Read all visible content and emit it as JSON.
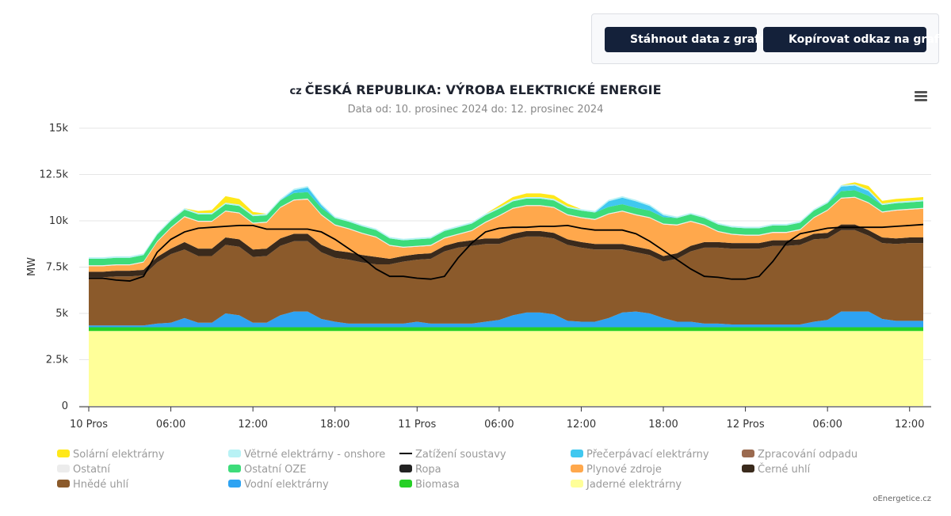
{
  "toolbar": {
    "download_label": "Stáhnout data z grafu",
    "copy_label": "Kopírovat odkaz na graf"
  },
  "title_prefix": "cz",
  "credit": "oEnergetice.cz",
  "chart_data": {
    "type": "area",
    "stacked": true,
    "title": "ČESKÁ REPUBLIKA: VÝROBA ELEKTRICKÉ ENERGIE",
    "subtitle": "Data od: 10. prosinec 2024 do: 12. prosinec 2024",
    "ylabel": "MW",
    "ylim": [
      0,
      15000
    ],
    "yticks": [
      0,
      2500,
      5000,
      7500,
      10000,
      12500,
      15000
    ],
    "ytick_labels": [
      "0",
      "2.5k",
      "5k",
      "7.5k",
      "10k",
      "12.5k",
      "15k"
    ],
    "x": [
      0,
      1,
      2,
      3,
      4,
      5,
      6,
      7,
      8,
      9,
      10,
      11,
      12,
      13,
      14,
      15,
      16,
      17,
      18,
      19,
      20,
      21,
      22,
      23,
      24,
      25,
      26,
      27,
      28,
      29,
      30,
      31,
      32,
      33,
      34,
      35,
      36,
      37,
      38,
      39,
      40,
      41,
      42,
      43,
      44,
      45,
      46,
      47,
      48,
      49,
      50,
      51,
      52,
      53,
      54,
      55,
      56,
      57,
      58,
      59,
      60,
      61
    ],
    "xlim": [
      0,
      61
    ],
    "xticks": [
      0,
      6,
      12,
      18,
      24,
      30,
      36,
      42,
      48,
      54,
      60
    ],
    "xtick_labels": [
      "10 Pros",
      "06:00",
      "12:00",
      "18:00",
      "11 Pros",
      "06:00",
      "12:00",
      "18:00",
      "12 Pros",
      "06:00",
      "12:00"
    ],
    "x_unit": "hodiny od 10. prosince 2024 00:00",
    "series": [
      {
        "name": "Jaderné elektrárny",
        "color": "#ffff99",
        "values": [
          4050,
          4050,
          4050,
          4050,
          4050,
          4050,
          4050,
          4050,
          4050,
          4050,
          4050,
          4050,
          4050,
          4050,
          4050,
          4050,
          4050,
          4050,
          4050,
          4050,
          4050,
          4050,
          4050,
          4050,
          4050,
          4050,
          4050,
          4050,
          4050,
          4050,
          4050,
          4050,
          4050,
          4050,
          4050,
          4050,
          4050,
          4050,
          4050,
          4050,
          4050,
          4050,
          4050,
          4050,
          4050,
          4050,
          4050,
          4050,
          4050,
          4050,
          4050,
          4050,
          4050,
          4050,
          4050,
          4050,
          4050,
          4050,
          4050,
          4050,
          4050,
          4050
        ]
      },
      {
        "name": "Biomasa",
        "color": "#26d026",
        "values": [
          200,
          200,
          200,
          200,
          200,
          200,
          200,
          200,
          200,
          200,
          200,
          200,
          200,
          200,
          200,
          200,
          200,
          200,
          200,
          200,
          200,
          200,
          200,
          200,
          200,
          200,
          200,
          200,
          200,
          200,
          200,
          200,
          200,
          200,
          200,
          200,
          200,
          200,
          200,
          200,
          200,
          200,
          200,
          200,
          200,
          200,
          200,
          200,
          200,
          200,
          200,
          200,
          200,
          200,
          200,
          200,
          200,
          200,
          200,
          200,
          200,
          200
        ]
      },
      {
        "name": "Vodní elektrárny",
        "color": "#2ea3f2",
        "values": [
          100,
          100,
          100,
          100,
          100,
          200,
          250,
          500,
          250,
          250,
          750,
          650,
          250,
          250,
          650,
          850,
          850,
          450,
          300,
          200,
          200,
          200,
          200,
          200,
          300,
          200,
          200,
          200,
          200,
          300,
          400,
          650,
          800,
          800,
          700,
          350,
          300,
          300,
          500,
          800,
          850,
          750,
          500,
          300,
          300,
          200,
          200,
          150,
          150,
          150,
          150,
          150,
          150,
          300,
          400,
          850,
          850,
          850,
          450,
          350,
          350,
          350
        ]
      },
      {
        "name": "Hnědé uhlí",
        "color": "#8b5a2b",
        "values": [
          2600,
          2600,
          2650,
          2650,
          2700,
          3300,
          3700,
          3700,
          3600,
          3600,
          3700,
          3700,
          3550,
          3600,
          3750,
          3800,
          3800,
          3600,
          3450,
          3450,
          3300,
          3200,
          3200,
          3350,
          3350,
          3500,
          3900,
          4100,
          4200,
          4200,
          4100,
          4100,
          4100,
          4100,
          4100,
          4100,
          4000,
          3900,
          3700,
          3400,
          3200,
          3150,
          3050,
          3400,
          3800,
          4100,
          4100,
          4100,
          4100,
          4100,
          4250,
          4250,
          4300,
          4450,
          4400,
          4400,
          4400,
          4100,
          4100,
          4150,
          4200,
          4200
        ]
      },
      {
        "name": "Černé uhlí",
        "color": "#3a2a1c",
        "values": [
          300,
          300,
          300,
          300,
          300,
          300,
          300,
          400,
          400,
          400,
          400,
          400,
          400,
          400,
          400,
          400,
          400,
          400,
          400,
          400,
          400,
          400,
          300,
          300,
          300,
          300,
          300,
          300,
          300,
          300,
          300,
          300,
          300,
          300,
          300,
          300,
          300,
          300,
          300,
          300,
          300,
          300,
          300,
          300,
          300,
          300,
          300,
          300,
          300,
          300,
          300,
          300,
          300,
          300,
          300,
          300,
          300,
          300,
          300,
          300,
          300,
          300
        ]
      },
      {
        "name": "Ropa",
        "color": "#222222",
        "values": [
          0,
          0,
          0,
          0,
          0,
          0,
          0,
          0,
          0,
          0,
          0,
          0,
          0,
          0,
          0,
          0,
          0,
          0,
          0,
          0,
          0,
          0,
          0,
          0,
          0,
          0,
          0,
          0,
          0,
          0,
          0,
          0,
          0,
          0,
          0,
          0,
          0,
          0,
          0,
          0,
          0,
          0,
          0,
          0,
          0,
          0,
          0,
          0,
          0,
          0,
          0,
          0,
          0,
          0,
          0,
          0,
          0,
          0,
          0,
          0,
          0,
          0
        ]
      },
      {
        "name": "Plynové zdroje",
        "color": "#ffa84c",
        "values": [
          300,
          300,
          300,
          300,
          400,
          800,
          1100,
          1350,
          1450,
          1450,
          1400,
          1400,
          1400,
          1400,
          1650,
          1800,
          1850,
          1600,
          1350,
          1250,
          1150,
          1050,
          700,
          450,
          400,
          400,
          400,
          400,
          500,
          850,
          1200,
          1350,
          1350,
          1350,
          1350,
          1300,
          1300,
          1300,
          1600,
          1750,
          1700,
          1700,
          1700,
          1500,
          1300,
          900,
          550,
          450,
          400,
          400,
          400,
          400,
          500,
          850,
          1200,
          1400,
          1450,
          1450,
          1350,
          1500,
          1500,
          1550
        ]
      },
      {
        "name": "Ostatní",
        "color": "#ececec",
        "values": [
          50,
          50,
          50,
          50,
          50,
          50,
          50,
          50,
          50,
          50,
          50,
          50,
          50,
          50,
          50,
          50,
          50,
          50,
          50,
          50,
          50,
          50,
          50,
          50,
          50,
          50,
          50,
          50,
          50,
          50,
          50,
          50,
          50,
          50,
          50,
          50,
          50,
          50,
          50,
          50,
          50,
          50,
          50,
          50,
          50,
          50,
          50,
          50,
          50,
          50,
          50,
          50,
          50,
          50,
          50,
          50,
          50,
          50,
          50,
          50,
          50,
          50
        ]
      },
      {
        "name": "Ostatní OZE",
        "color": "#3ddc7a",
        "values": [
          350,
          350,
          350,
          350,
          350,
          350,
          350,
          350,
          350,
          350,
          350,
          350,
          350,
          350,
          350,
          350,
          350,
          350,
          350,
          350,
          350,
          350,
          350,
          350,
          350,
          350,
          350,
          350,
          350,
          350,
          350,
          350,
          350,
          350,
          350,
          350,
          350,
          350,
          350,
          350,
          350,
          350,
          350,
          350,
          350,
          350,
          350,
          350,
          350,
          350,
          350,
          350,
          350,
          350,
          350,
          350,
          350,
          350,
          350,
          350,
          350,
          350
        ]
      },
      {
        "name": "Přečerpávací elektrárny",
        "color": "#40c8f0",
        "values": [
          0,
          0,
          0,
          0,
          0,
          0,
          0,
          0,
          0,
          0,
          0,
          0,
          0,
          0,
          0,
          150,
          250,
          150,
          0,
          0,
          0,
          0,
          0,
          0,
          0,
          0,
          0,
          0,
          0,
          0,
          0,
          0,
          0,
          0,
          0,
          0,
          0,
          0,
          300,
          350,
          350,
          250,
          100,
          0,
          0,
          0,
          0,
          0,
          0,
          0,
          0,
          0,
          0,
          0,
          0,
          250,
          250,
          250,
          0,
          0,
          0,
          0
        ]
      },
      {
        "name": "Větrné elektrárny - onshore",
        "color": "#b8f2f5",
        "values": [
          80,
          80,
          80,
          80,
          80,
          80,
          80,
          80,
          80,
          80,
          80,
          80,
          80,
          80,
          80,
          80,
          80,
          80,
          80,
          80,
          80,
          80,
          80,
          80,
          80,
          80,
          80,
          80,
          80,
          80,
          80,
          80,
          80,
          80,
          80,
          80,
          80,
          80,
          80,
          80,
          80,
          80,
          80,
          80,
          80,
          80,
          80,
          80,
          80,
          80,
          80,
          80,
          80,
          80,
          80,
          80,
          80,
          80,
          80,
          80,
          80,
          80
        ]
      },
      {
        "name": "Solární elektrárny",
        "color": "#ffe81a",
        "values": [
          0,
          0,
          0,
          0,
          0,
          0,
          0,
          0,
          100,
          150,
          350,
          300,
          150,
          0,
          0,
          0,
          0,
          0,
          0,
          0,
          0,
          0,
          0,
          0,
          0,
          0,
          0,
          0,
          0,
          0,
          100,
          150,
          200,
          200,
          200,
          150,
          0,
          0,
          0,
          0,
          0,
          0,
          0,
          0,
          0,
          0,
          0,
          0,
          0,
          0,
          0,
          0,
          0,
          0,
          0,
          0,
          100,
          200,
          150,
          150,
          150,
          150
        ]
      },
      {
        "name": "Zpracování odpadu",
        "color": "#9b6a4f",
        "values": [
          0,
          0,
          0,
          0,
          0,
          0,
          0,
          0,
          0,
          0,
          0,
          0,
          0,
          0,
          0,
          0,
          0,
          0,
          0,
          0,
          0,
          0,
          0,
          0,
          0,
          0,
          0,
          0,
          0,
          0,
          0,
          0,
          0,
          0,
          0,
          0,
          0,
          0,
          0,
          0,
          0,
          0,
          0,
          0,
          0,
          0,
          0,
          0,
          0,
          0,
          0,
          0,
          0,
          0,
          0,
          0,
          0,
          0,
          0,
          0,
          0,
          0
        ]
      }
    ],
    "line": {
      "name": "Zatížení soustavy",
      "color": "#000000",
      "values": [
        6900,
        6900,
        6800,
        6750,
        7000,
        8300,
        9000,
        9400,
        9600,
        9650,
        9700,
        9750,
        9750,
        9550,
        9550,
        9550,
        9550,
        9400,
        9000,
        8500,
        8000,
        7400,
        7000,
        7000,
        6900,
        6850,
        7000,
        8000,
        8800,
        9400,
        9600,
        9650,
        9650,
        9700,
        9700,
        9750,
        9600,
        9500,
        9500,
        9500,
        9300,
        8900,
        8400,
        7900,
        7400,
        7000,
        6950,
        6850,
        6850,
        7000,
        7800,
        8800,
        9300,
        9450,
        9600,
        9650,
        9650,
        9650,
        9650,
        9700,
        9750,
        9800
      ]
    },
    "legend": [
      {
        "name": "Solární elektrárny",
        "color": "#ffe81a"
      },
      {
        "name": "Větrné elektrárny - onshore",
        "color": "#b8f2f5"
      },
      {
        "name": "Zatížení soustavy",
        "color": "#000000",
        "marker": "line"
      },
      {
        "name": "Přečerpávací elektrárny",
        "color": "#40c8f0"
      },
      {
        "name": "Zpracování odpadu",
        "color": "#9b6a4f"
      },
      {
        "name": "Ostatní",
        "color": "#ececec"
      },
      {
        "name": "Ostatní OZE",
        "color": "#3ddc7a"
      },
      {
        "name": "Ropa",
        "color": "#222222"
      },
      {
        "name": "Plynové zdroje",
        "color": "#ffa84c"
      },
      {
        "name": "Černé uhlí",
        "color": "#3a2a1c"
      },
      {
        "name": "Hnědé uhlí",
        "color": "#8b5a2b"
      },
      {
        "name": "Vodní elektrárny",
        "color": "#2ea3f2"
      },
      {
        "name": "Biomasa",
        "color": "#26d026"
      },
      {
        "name": "Jaderné elektrárny",
        "color": "#ffff99"
      }
    ],
    "legend_position": "bottom",
    "grid": true
  }
}
